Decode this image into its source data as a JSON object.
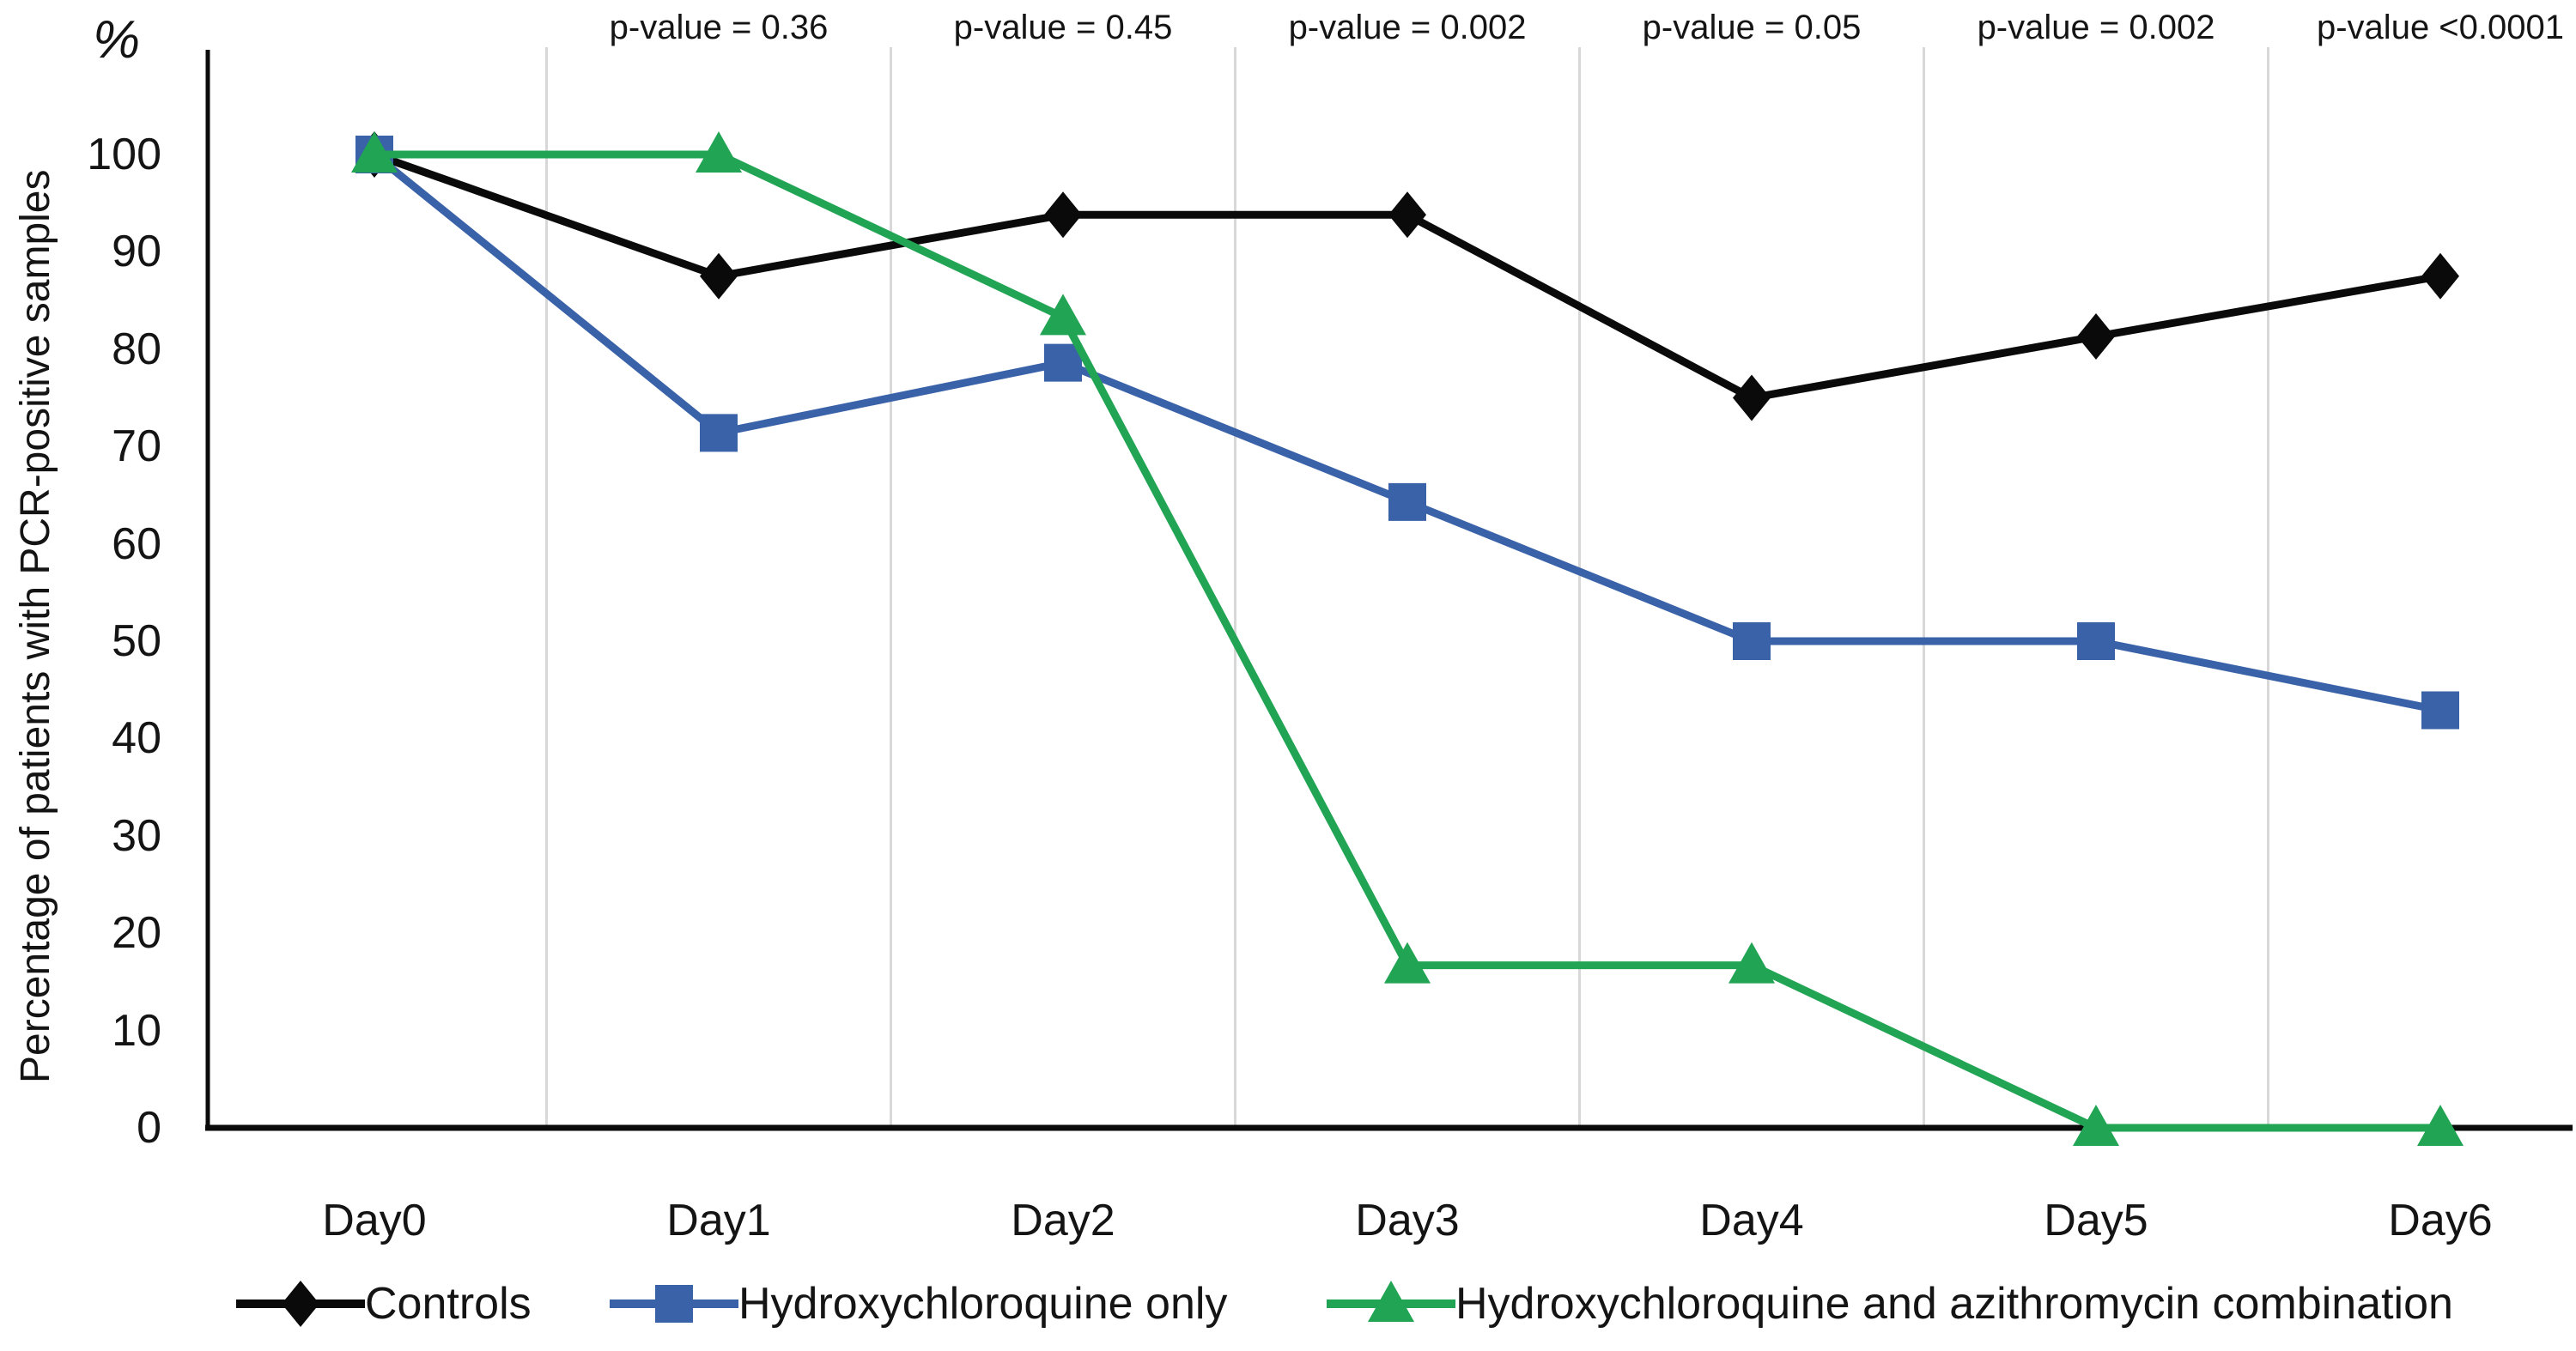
{
  "chart_data": {
    "type": "line",
    "title": "",
    "percent_symbol": "%",
    "ylabel": "Percentage of patients with PCR-positive samples",
    "categories": [
      "Day0",
      "Day1",
      "Day2",
      "Day3",
      "Day4",
      "Day5",
      "Day6"
    ],
    "y_ticks": [
      0,
      10,
      20,
      30,
      40,
      50,
      60,
      70,
      80,
      90,
      100
    ],
    "ylim": [
      0,
      100
    ],
    "grid": "vertical-lines-between-categories",
    "gridline_color": "#d8d8d8",
    "axis_color": "#0a0a0a",
    "legend_position": "bottom",
    "p_values": [
      {
        "category": "Day1",
        "label": "p-value = 0.36"
      },
      {
        "category": "Day2",
        "label": "p-value = 0.45"
      },
      {
        "category": "Day3",
        "label": "p-value = 0.002"
      },
      {
        "category": "Day4",
        "label": "p-value = 0.05"
      },
      {
        "category": "Day5",
        "label": "p-value = 0.002"
      },
      {
        "category": "Day6",
        "label": "p-value <0.0001"
      }
    ],
    "series": [
      {
        "name": "Controls",
        "marker": "diamond",
        "color": "#0a0a0a",
        "values": [
          100,
          87.5,
          93.8,
          93.8,
          75,
          81.3,
          87.5
        ]
      },
      {
        "name": "Hydroxychloroquine only",
        "marker": "square",
        "color": "#3a62a8",
        "values": [
          100,
          71.4,
          78.6,
          64.3,
          50,
          50,
          42.9
        ]
      },
      {
        "name": "Hydroxychloroquine and azithromycin combination",
        "marker": "triangle",
        "color": "#21a453",
        "values": [
          100,
          100,
          83.3,
          16.7,
          16.7,
          0,
          0
        ]
      }
    ]
  }
}
